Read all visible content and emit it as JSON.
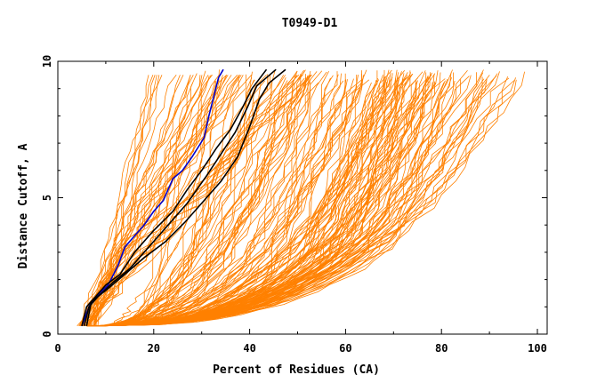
{
  "chart_data": {
    "type": "line",
    "title": "T0949-D1",
    "xlabel": "Percent of Residues (CA)",
    "ylabel": "Distance Cutoff, A",
    "xlim": [
      0,
      100
    ],
    "ylim": [
      0,
      10
    ],
    "x_ticks": [
      "0",
      "20",
      "40",
      "60",
      "80",
      "100"
    ],
    "y_ticks": [
      "0",
      "5",
      "10"
    ],
    "grid": false,
    "colors": {
      "background_models": "#ff8000",
      "highlight": "#0000cc",
      "reference": "#000000"
    },
    "series": [
      {
        "group": "highlight",
        "points": [
          [
            5.0,
            0.3
          ],
          [
            6.5,
            1.0
          ],
          [
            7.5,
            1.3
          ],
          [
            10.5,
            1.8
          ],
          [
            12.5,
            2.5
          ],
          [
            14.0,
            3.2
          ],
          [
            16.0,
            3.6
          ],
          [
            18.0,
            4.0
          ],
          [
            20.0,
            4.5
          ],
          [
            22.0,
            4.9
          ],
          [
            24.0,
            5.7
          ],
          [
            26.0,
            6.0
          ],
          [
            28.0,
            6.5
          ],
          [
            30.5,
            7.2
          ],
          [
            31.5,
            8.0
          ],
          [
            32.5,
            8.7
          ],
          [
            33.5,
            9.4
          ],
          [
            34.5,
            9.7
          ]
        ]
      },
      {
        "group": "reference",
        "points": [
          [
            5.0,
            0.3
          ],
          [
            6.0,
            1.0
          ],
          [
            7.5,
            1.3
          ],
          [
            10.0,
            1.8
          ],
          [
            13.0,
            2.2
          ],
          [
            16.0,
            3.0
          ],
          [
            20.0,
            3.8
          ],
          [
            24.0,
            4.5
          ],
          [
            27.0,
            5.3
          ],
          [
            30.0,
            6.0
          ],
          [
            33.0,
            6.8
          ],
          [
            36.0,
            7.5
          ],
          [
            38.5,
            8.3
          ],
          [
            40.5,
            9.0
          ],
          [
            43.5,
            9.7
          ]
        ]
      },
      {
        "group": "reference",
        "points": [
          [
            5.5,
            0.3
          ],
          [
            6.5,
            1.0
          ],
          [
            8.5,
            1.4
          ],
          [
            11.5,
            1.9
          ],
          [
            15.0,
            2.4
          ],
          [
            19.0,
            3.2
          ],
          [
            23.0,
            4.0
          ],
          [
            27.0,
            4.8
          ],
          [
            31.0,
            5.8
          ],
          [
            34.0,
            6.6
          ],
          [
            37.0,
            7.4
          ],
          [
            39.5,
            8.3
          ],
          [
            41.5,
            9.1
          ],
          [
            45.5,
            9.7
          ]
        ]
      },
      {
        "group": "reference",
        "points": [
          [
            6.0,
            0.3
          ],
          [
            7.0,
            1.2
          ],
          [
            10.0,
            1.6
          ],
          [
            14.0,
            2.2
          ],
          [
            18.0,
            2.8
          ],
          [
            22.5,
            3.4
          ],
          [
            26.5,
            4.1
          ],
          [
            30.5,
            4.9
          ],
          [
            34.0,
            5.6
          ],
          [
            37.5,
            6.5
          ],
          [
            40.0,
            7.6
          ],
          [
            42.0,
            8.6
          ],
          [
            44.0,
            9.2
          ],
          [
            47.5,
            9.7
          ]
        ]
      }
    ]
  }
}
